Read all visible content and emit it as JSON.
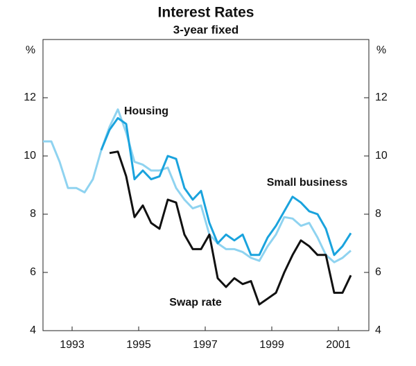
{
  "chart_data": {
    "type": "line",
    "title": "Interest Rates",
    "subtitle": "3-year fixed",
    "ylabel": "%",
    "y2label": "%",
    "x": [
      1992.625,
      1992.875,
      1993.125,
      1993.375,
      1993.625,
      1993.875,
      1994.125,
      1994.375,
      1994.625,
      1994.875,
      1995.125,
      1995.375,
      1995.625,
      1995.875,
      1996.125,
      1996.375,
      1996.625,
      1996.875,
      1997.125,
      1997.375,
      1997.625,
      1997.875,
      1998.125,
      1998.375,
      1998.625,
      1998.875,
      1999.125,
      1999.375,
      1999.625,
      1999.875,
      2000.125,
      2000.375,
      2000.625,
      2000.875,
      2001.125,
      2001.375,
      2001.625,
      2001.875
    ],
    "series": [
      {
        "name": "Housing",
        "color": "#8fd3f0",
        "values": [
          10.5,
          10.5,
          9.8,
          8.9,
          8.9,
          8.75,
          9.2,
          10.2,
          11.0,
          11.6,
          10.8,
          9.8,
          9.7,
          9.5,
          9.5,
          9.6,
          8.9,
          8.5,
          8.2,
          8.3,
          7.3,
          7.0,
          6.8,
          6.8,
          6.7,
          6.5,
          6.4,
          6.9,
          7.3,
          7.9,
          7.85,
          7.6,
          7.7,
          7.2,
          6.6,
          6.35,
          6.5,
          6.75
        ]
      },
      {
        "name": "Small business",
        "color": "#1aa3dd",
        "values": [
          null,
          null,
          null,
          null,
          null,
          null,
          null,
          10.2,
          10.9,
          11.3,
          11.1,
          9.2,
          9.5,
          9.2,
          9.3,
          10.0,
          9.9,
          8.9,
          8.5,
          8.8,
          7.7,
          7.0,
          7.3,
          7.1,
          7.3,
          6.6,
          6.6,
          7.2,
          7.6,
          8.1,
          8.6,
          8.4,
          8.1,
          8.0,
          7.5,
          6.6,
          6.9,
          7.35
        ]
      },
      {
        "name": "Swap rate",
        "color": "#111111",
        "values": [
          null,
          null,
          null,
          null,
          null,
          null,
          null,
          null,
          10.1,
          10.15,
          9.3,
          7.9,
          8.3,
          7.7,
          7.5,
          8.5,
          8.4,
          7.3,
          6.8,
          6.8,
          7.3,
          5.8,
          5.5,
          5.8,
          5.6,
          5.7,
          4.9,
          5.1,
          5.3,
          6.0,
          6.6,
          7.1,
          6.9,
          6.6,
          6.6,
          5.3,
          5.3,
          5.9
        ]
      }
    ],
    "xlim": [
      1992.625,
      2002.417
    ],
    "xticks": [
      {
        "value": 1993.5,
        "label": "1993"
      },
      {
        "value": 1995.5,
        "label": "1995"
      },
      {
        "value": 1997.5,
        "label": "1997"
      },
      {
        "value": 1999.5,
        "label": "1999"
      },
      {
        "value": 2001.5,
        "label": "2001"
      }
    ],
    "ylim": [
      4,
      14
    ],
    "yticks": [
      4,
      6,
      8,
      10,
      12
    ],
    "y2lim": [
      4,
      14
    ],
    "y2ticks": [
      4,
      6,
      8,
      10,
      12
    ],
    "grid": false
  }
}
